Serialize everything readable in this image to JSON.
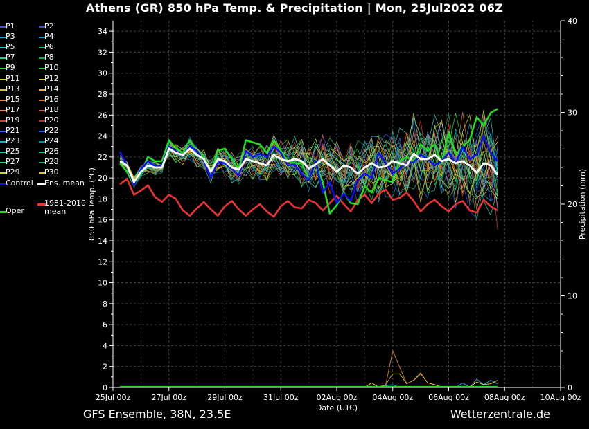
{
  "title": "Athens  (GR)  850 hPa Temp. & Precipitation | Mon, 25Jul2022 06Z",
  "footer": {
    "left": "GFS Ensemble, 38N, 23.5E",
    "right": "Wetterzentrale.de"
  },
  "chart_data": {
    "type": "line",
    "xlabel": "Date (UTC)",
    "ylabel": "850 hPa Temp. (°C)",
    "y2label": "Precipitation (mm)",
    "x_ticks": [
      "25Jul 00z",
      "27Jul 00z",
      "29Jul 00z",
      "31Jul 00z",
      "02Aug 00z",
      "04Aug 00z",
      "06Aug 00z",
      "08Aug 00z",
      "10Aug 00z"
    ],
    "x_range_hours": [
      0,
      384
    ],
    "ylim": [
      0,
      35
    ],
    "yticks": [
      0,
      2,
      4,
      6,
      8,
      10,
      12,
      14,
      16,
      18,
      20,
      22,
      24,
      26,
      28,
      30,
      32,
      34
    ],
    "y2lim": [
      0,
      40
    ],
    "y2ticks": [
      0,
      10,
      20,
      30,
      40
    ],
    "grid": true,
    "legend_position": "left",
    "step_hours": 6,
    "start_hour": 6,
    "colors": {
      "control": "#1111ee",
      "ens_mean": "#ffffff",
      "oper": "#22dd22",
      "climate": "#ee3333",
      "members": [
        "#3355ff",
        "#2255dd",
        "#22aadd",
        "#1199cc",
        "#22ccbb",
        "#22bb88",
        "#33cc77",
        "#11aa44",
        "#33dd33",
        "#22cc22",
        "#ccdd22",
        "#ddcc44",
        "#ddbb22",
        "#eeaa33",
        "#dd8855",
        "#cc7733",
        "#ee8855",
        "#dd5533",
        "#ee3322",
        "#cc2222",
        "#3366ff",
        "#2266ee",
        "#22aacc",
        "#1188aa",
        "#22ccaa",
        "#22bb99",
        "#22dd88",
        "#22aa55",
        "#ccdd00",
        "#ddcc00"
      ]
    },
    "legend": [
      {
        "label": "P1"
      },
      {
        "label": "P2"
      },
      {
        "label": "P3"
      },
      {
        "label": "P4"
      },
      {
        "label": "P5"
      },
      {
        "label": "P6"
      },
      {
        "label": "P7"
      },
      {
        "label": "P8"
      },
      {
        "label": "P9"
      },
      {
        "label": "P10"
      },
      {
        "label": "P11"
      },
      {
        "label": "P12"
      },
      {
        "label": "P13"
      },
      {
        "label": "P14"
      },
      {
        "label": "P15"
      },
      {
        "label": "P16"
      },
      {
        "label": "P17"
      },
      {
        "label": "P18"
      },
      {
        "label": "P19"
      },
      {
        "label": "P20"
      },
      {
        "label": "P21"
      },
      {
        "label": "P22"
      },
      {
        "label": "P23"
      },
      {
        "label": "P24"
      },
      {
        "label": "P25"
      },
      {
        "label": "P26"
      },
      {
        "label": "P27"
      },
      {
        "label": "P28"
      },
      {
        "label": "P29"
      },
      {
        "label": "P30"
      },
      {
        "label": "Control"
      },
      {
        "label": "Ens. mean"
      },
      {
        "label": "1981-2010 mean"
      },
      {
        "label": "Oper"
      }
    ],
    "series": [
      {
        "name": "Ens. mean",
        "values": [
          21.6,
          21.2,
          19.6,
          20.6,
          21.2,
          21.0,
          21.0,
          22.8,
          22.4,
          22.2,
          22.8,
          22.2,
          21.8,
          20.6,
          21.8,
          21.6,
          21.0,
          20.8,
          21.8,
          21.6,
          21.4,
          21.2,
          22.2,
          21.8,
          21.6,
          21.8,
          21.6,
          20.9,
          21.3,
          21.8,
          21.2,
          20.6,
          21.2,
          21.0,
          20.4,
          21.0,
          21.4,
          21.0,
          21.1,
          21.6,
          21.4,
          21.2,
          22.3,
          21.8,
          21.8,
          22.2,
          21.6,
          21.8,
          21.4,
          21.6,
          21.2,
          20.5,
          21.4,
          21.2,
          20.3
        ]
      },
      {
        "name": "Control",
        "values": [
          22.5,
          21.2,
          19.3,
          20.8,
          21.6,
          21.1,
          21.2,
          23.0,
          22.5,
          22.2,
          23.0,
          22.6,
          21.6,
          20.0,
          21.5,
          21.4,
          20.9,
          20.2,
          22.6,
          22.0,
          22.3,
          22.0,
          23.0,
          22.4,
          21.2,
          21.3,
          20.4,
          19.8,
          21.6,
          18.6,
          19.6,
          17.6,
          18.5,
          17.8,
          19.8,
          20.4,
          20.0,
          22.4,
          21.4,
          20.4,
          20.9,
          21.4,
          21.5,
          22.2,
          21.8,
          21.2,
          21.6,
          22.4,
          21.4,
          23.0,
          21.8,
          22.2,
          24.0,
          22.4,
          21.6
        ]
      },
      {
        "name": "Oper",
        "values": [
          21.4,
          20.6,
          19.3,
          20.5,
          22.0,
          21.6,
          21.6,
          23.6,
          22.8,
          22.4,
          23.6,
          22.6,
          22.0,
          20.6,
          22.6,
          22.8,
          21.8,
          20.8,
          23.6,
          23.4,
          23.2,
          22.4,
          23.6,
          22.6,
          21.6,
          21.4,
          21.4,
          19.8,
          21.4,
          19.6,
          16.6,
          17.4,
          18.6,
          17.6,
          17.5,
          19.2,
          18.6,
          20.0,
          19.8,
          19.6,
          21.6,
          22.0,
          21.6,
          23.2,
          22.6,
          23.2,
          21.4,
          24.4,
          22.2,
          23.0,
          23.6,
          25.8,
          25.0,
          26.2,
          26.6
        ]
      },
      {
        "name": "1981-2010 mean",
        "values": [
          19.4,
          19.9,
          18.4,
          18.8,
          19.3,
          18.2,
          17.7,
          18.4,
          18.0,
          16.9,
          16.4,
          17.1,
          17.7,
          17.0,
          16.4,
          17.3,
          17.8,
          17.0,
          16.4,
          17.0,
          17.5,
          16.8,
          16.3,
          17.3,
          17.8,
          17.2,
          17.1,
          17.9,
          17.6,
          16.9,
          17.6,
          18.3,
          17.5,
          16.8,
          17.9,
          18.4,
          17.6,
          18.5,
          18.9,
          17.9,
          18.1,
          18.6,
          17.8,
          16.8,
          17.5,
          17.9,
          17.3,
          16.8,
          17.5,
          17.8,
          16.9,
          16.7,
          17.9,
          17.3,
          16.9
        ]
      }
    ],
    "precip_members_mm": [
      0,
      0,
      0,
      0,
      0,
      0,
      0,
      0,
      0,
      0,
      0,
      0,
      0,
      0,
      0,
      0,
      0,
      0,
      0,
      0,
      0,
      0,
      0,
      0,
      0,
      0,
      0,
      0,
      0,
      0,
      0,
      0,
      0,
      0,
      0,
      0,
      0.5,
      0,
      0.3,
      4,
      2.2,
      0.4,
      0.8,
      1.6,
      0.5,
      0.3,
      0,
      0,
      0,
      0,
      0,
      0.6,
      0.3,
      0.4,
      0.8
    ],
    "precip_member2_mm": [
      0,
      0,
      0,
      0,
      0,
      0,
      0,
      0,
      0,
      0,
      0,
      0,
      0,
      0,
      0,
      0,
      0,
      0,
      0,
      0,
      0,
      0,
      0,
      0,
      0,
      0,
      0,
      0,
      0,
      0,
      0,
      0,
      0,
      0,
      0,
      0,
      0,
      0,
      0.2,
      0.3,
      0,
      0,
      0,
      0,
      0,
      0,
      0,
      0,
      0,
      0.5,
      0,
      0.9,
      0.3,
      0.8,
      0.4
    ]
  }
}
